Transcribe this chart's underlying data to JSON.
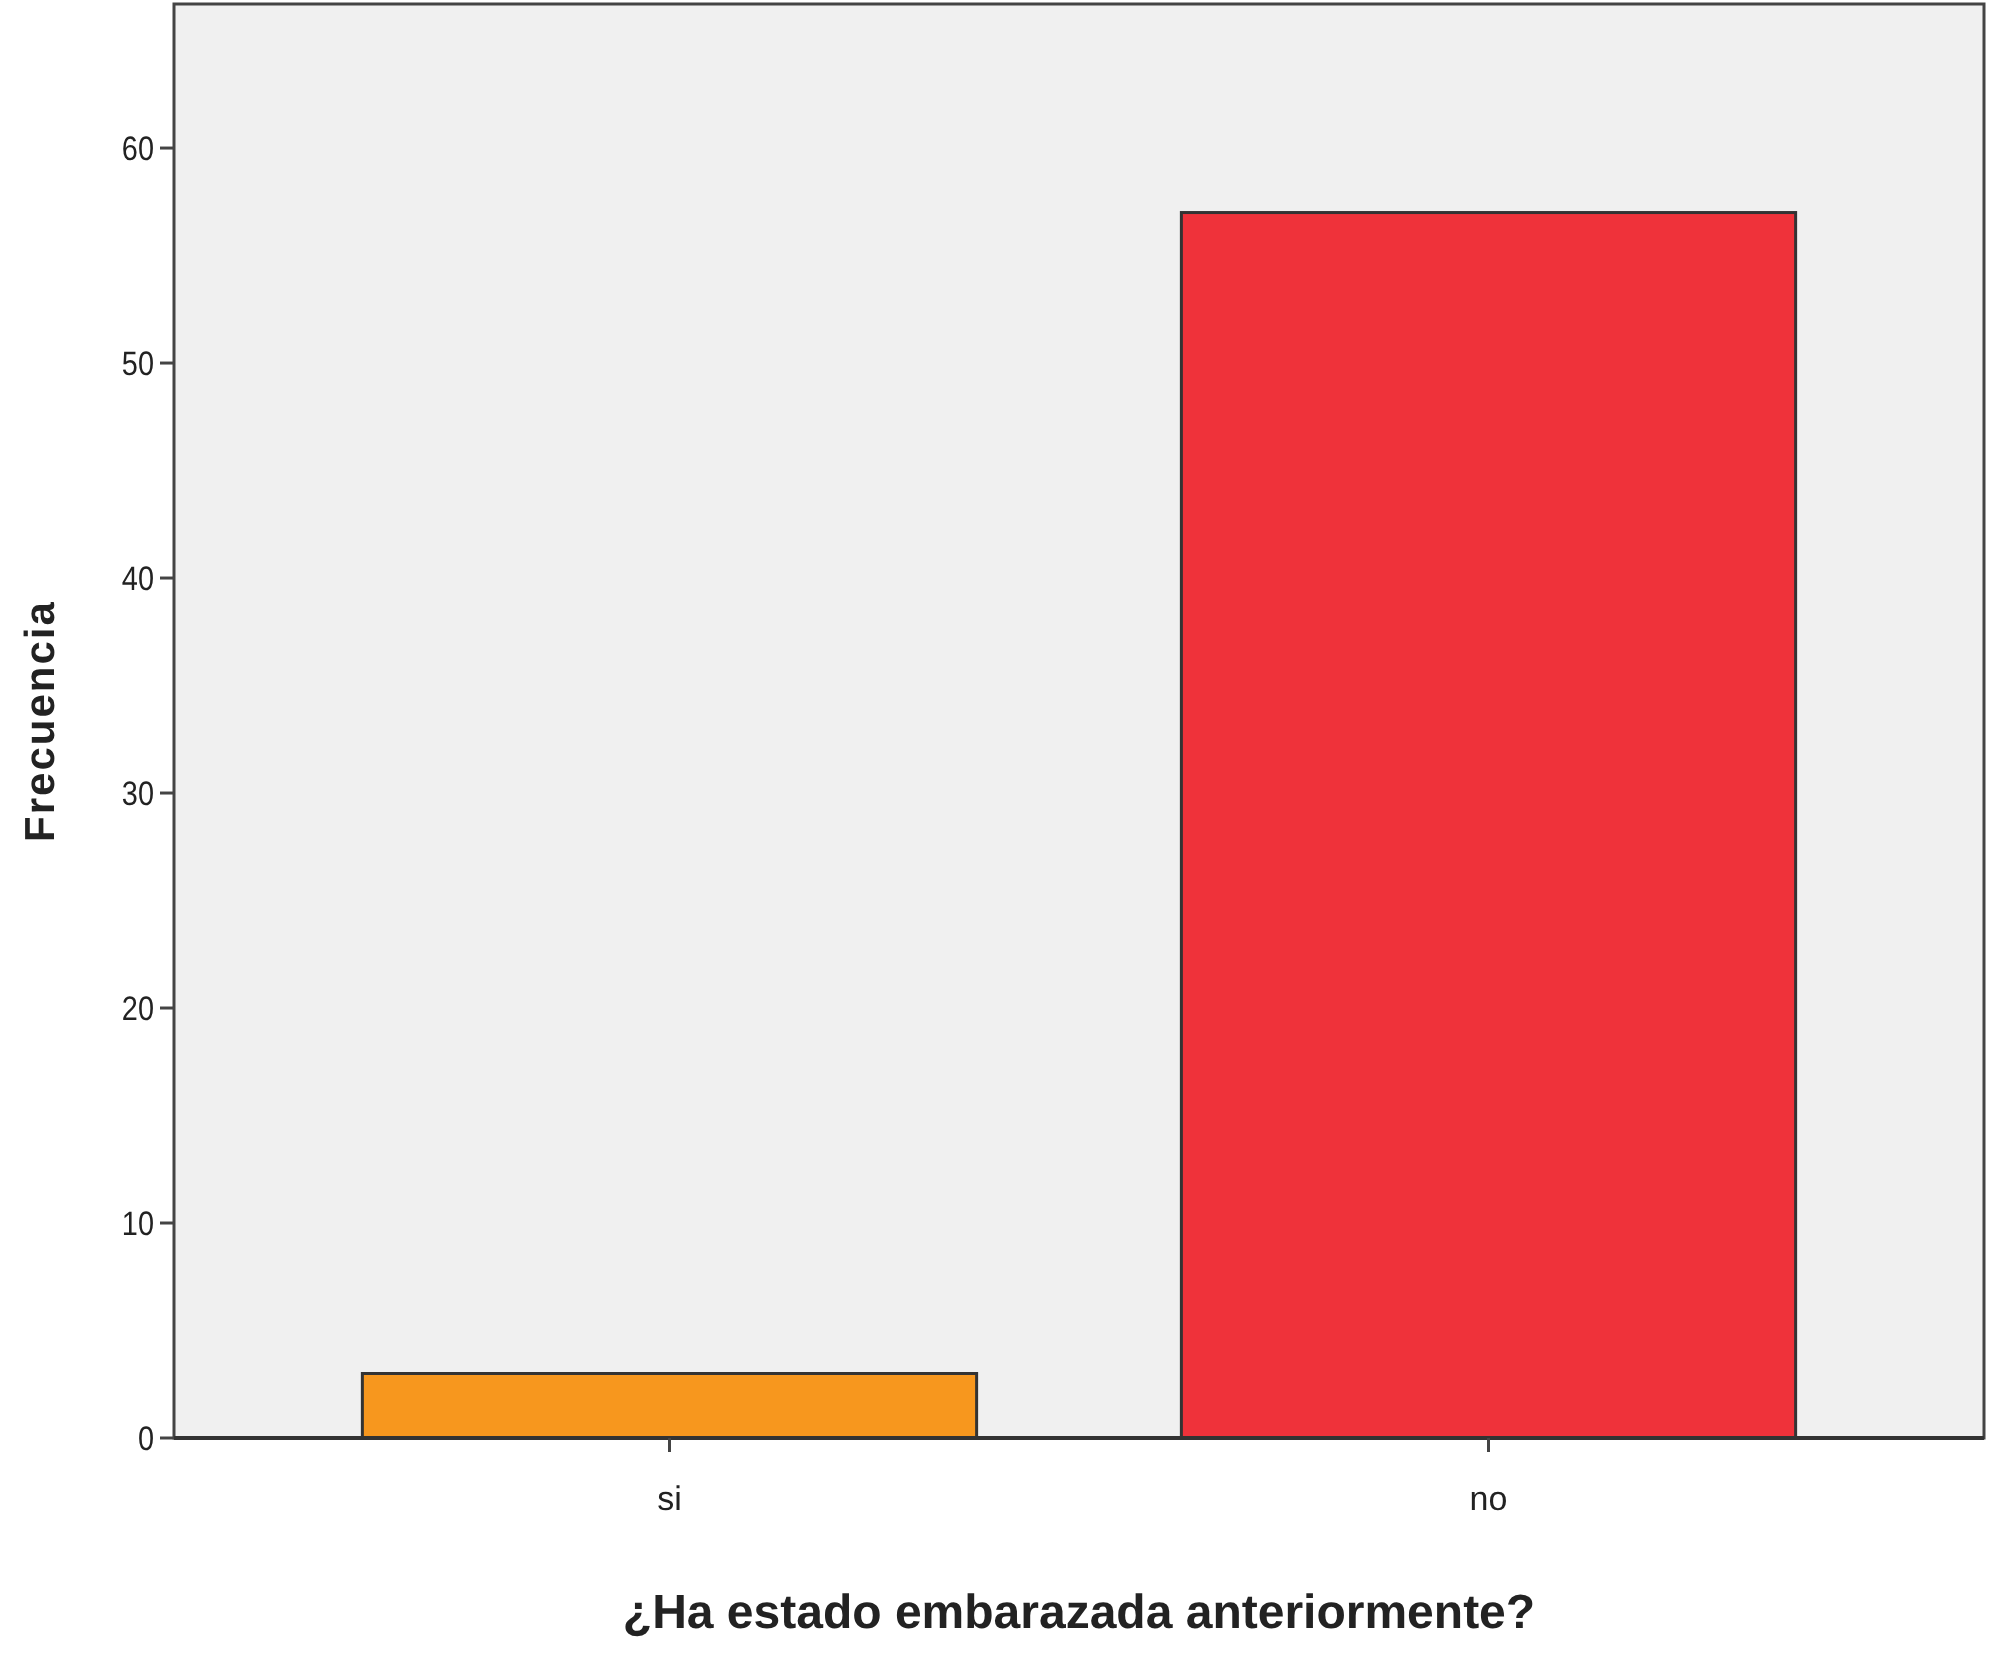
{
  "chart_data": {
    "type": "bar",
    "xlabel": "¿Ha estado embarazada anteriormente?",
    "ylabel": "Frecuencia",
    "categories": [
      "si",
      "no"
    ],
    "values": [
      3,
      57
    ],
    "colors": [
      "#f7971e",
      "#ef323a"
    ],
    "ylim": [
      0,
      66.7
    ],
    "yticks": [
      0,
      10,
      20,
      30,
      40,
      50,
      60
    ],
    "grid": false
  }
}
